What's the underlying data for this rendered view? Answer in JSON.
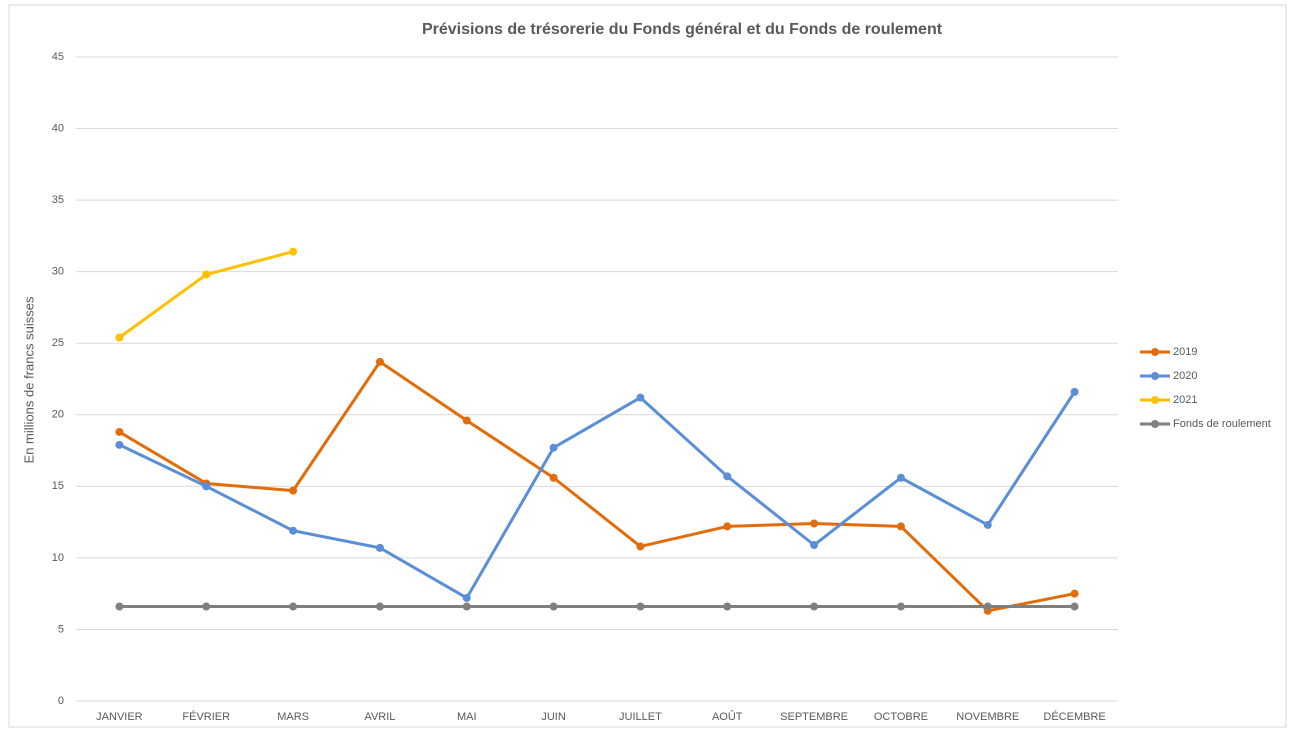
{
  "chart_data": {
    "type": "line",
    "title": "Prévisions de trésorerie du Fonds général et du Fonds de roulement",
    "y_label": "En millions de francs suisses",
    "categories": [
      "JANVIER",
      "FÉVRIER",
      "MARS",
      "AVRIL",
      "MAI",
      "JUIN",
      "JUILLET",
      "AOÛT",
      "SEPTEMBRE",
      "OCTOBRE",
      "NOVEMBRE",
      "DÉCEMBRE"
    ],
    "series": [
      {
        "name": "2019",
        "color": "#e36c0a",
        "values": [
          18.8,
          15.2,
          14.7,
          23.7,
          19.6,
          15.6,
          10.8,
          12.2,
          12.4,
          12.2,
          6.3,
          7.5
        ]
      },
      {
        "name": "2020",
        "color": "#5a8ed6",
        "values": [
          17.9,
          15.0,
          11.9,
          10.7,
          7.2,
          17.7,
          21.2,
          15.7,
          10.9,
          15.6,
          12.3,
          21.6
        ]
      },
      {
        "name": "2021",
        "color": "#ffc000",
        "values": [
          25.4,
          29.8,
          31.4,
          null,
          null,
          null,
          null,
          null,
          null,
          null,
          null,
          null
        ]
      },
      {
        "name": "Fonds de roulement",
        "color": "#7f7f7f",
        "values": [
          6.6,
          6.6,
          6.6,
          6.6,
          6.6,
          6.6,
          6.6,
          6.6,
          6.6,
          6.6,
          6.6,
          6.6
        ]
      }
    ],
    "ylim": [
      0,
      45
    ],
    "yticks": [
      0,
      5,
      10,
      15,
      20,
      25,
      30,
      35,
      40,
      45
    ],
    "grid": true,
    "legend": "right"
  }
}
